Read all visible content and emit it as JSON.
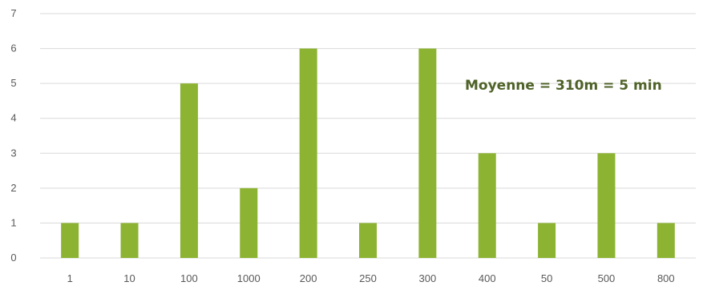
{
  "chart_data": {
    "type": "bar",
    "categories": [
      "1",
      "10",
      "100",
      "1000",
      "200",
      "250",
      "300",
      "400",
      "50",
      "500",
      "800"
    ],
    "values": [
      1,
      1,
      5,
      2,
      6,
      1,
      6,
      3,
      1,
      3,
      1
    ],
    "ylim": [
      0,
      7
    ],
    "yticks": [
      0,
      1,
      2,
      3,
      4,
      5,
      6,
      7
    ],
    "grid": true,
    "bar_color": "#8db332",
    "grid_color": "#d9d9d9",
    "annotation": "Moyenne = 310m = 5 min",
    "annotation_color": "#4f6228"
  }
}
